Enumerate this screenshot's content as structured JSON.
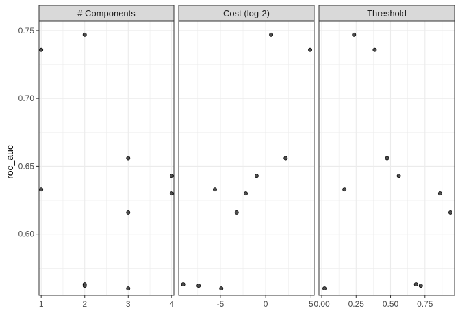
{
  "chart_data": {
    "type": "scatter",
    "ylabel": "roc_auc",
    "ylim": [
      0.555,
      0.757
    ],
    "y_ticks": [
      0.6,
      0.65,
      0.7,
      0.75
    ],
    "y_tick_labels": [
      "0.60",
      "0.65",
      "0.70",
      "0.75"
    ],
    "grid": true,
    "colors": {
      "strip_fill": "#d9d9d9",
      "grid": "#ebebeb",
      "point_fill": "#4d4d4d",
      "point_stroke": "#000000",
      "panel_border": "#333333"
    },
    "facets": [
      {
        "id": "components",
        "title": "# Components",
        "xlim": [
          0.95,
          4.05
        ],
        "x_ticks": [
          1,
          2,
          3,
          4
        ],
        "x_tick_labels": [
          "1",
          "2",
          "3",
          "4"
        ],
        "points": [
          {
            "x": 1,
            "y": 0.736
          },
          {
            "x": 1,
            "y": 0.633
          },
          {
            "x": 2,
            "y": 0.747
          },
          {
            "x": 2,
            "y": 0.563
          },
          {
            "x": 2,
            "y": 0.562
          },
          {
            "x": 3,
            "y": 0.656
          },
          {
            "x": 3,
            "y": 0.616
          },
          {
            "x": 3,
            "y": 0.56
          },
          {
            "x": 4,
            "y": 0.643
          },
          {
            "x": 4,
            "y": 0.63
          }
        ]
      },
      {
        "id": "cost",
        "title": "Cost (log-2)",
        "xlim": [
          -9.6,
          5.35
        ],
        "x_ticks": [
          -5,
          0,
          5
        ],
        "x_tick_labels": [
          "-5",
          "0",
          "5"
        ],
        "points": [
          {
            "x": -9.1,
            "y": 0.563
          },
          {
            "x": -7.4,
            "y": 0.562
          },
          {
            "x": -5.6,
            "y": 0.633
          },
          {
            "x": -4.9,
            "y": 0.56
          },
          {
            "x": -3.2,
            "y": 0.616
          },
          {
            "x": -2.2,
            "y": 0.63
          },
          {
            "x": -1.0,
            "y": 0.643
          },
          {
            "x": 2.2,
            "y": 0.656
          },
          {
            "x": 0.6,
            "y": 0.747
          },
          {
            "x": 4.9,
            "y": 0.736
          }
        ]
      },
      {
        "id": "threshold",
        "title": "Threshold",
        "xlim": [
          -0.02,
          0.965
        ],
        "x_ticks": [
          0.0,
          0.25,
          0.5,
          0.75
        ],
        "x_tick_labels": [
          "0.00",
          "0.25",
          "0.50",
          "0.75"
        ],
        "points": [
          {
            "x": 0.02,
            "y": 0.56
          },
          {
            "x": 0.165,
            "y": 0.633
          },
          {
            "x": 0.235,
            "y": 0.747
          },
          {
            "x": 0.385,
            "y": 0.736
          },
          {
            "x": 0.475,
            "y": 0.656
          },
          {
            "x": 0.56,
            "y": 0.643
          },
          {
            "x": 0.685,
            "y": 0.563
          },
          {
            "x": 0.72,
            "y": 0.562
          },
          {
            "x": 0.86,
            "y": 0.63
          },
          {
            "x": 0.935,
            "y": 0.616
          }
        ]
      }
    ]
  }
}
